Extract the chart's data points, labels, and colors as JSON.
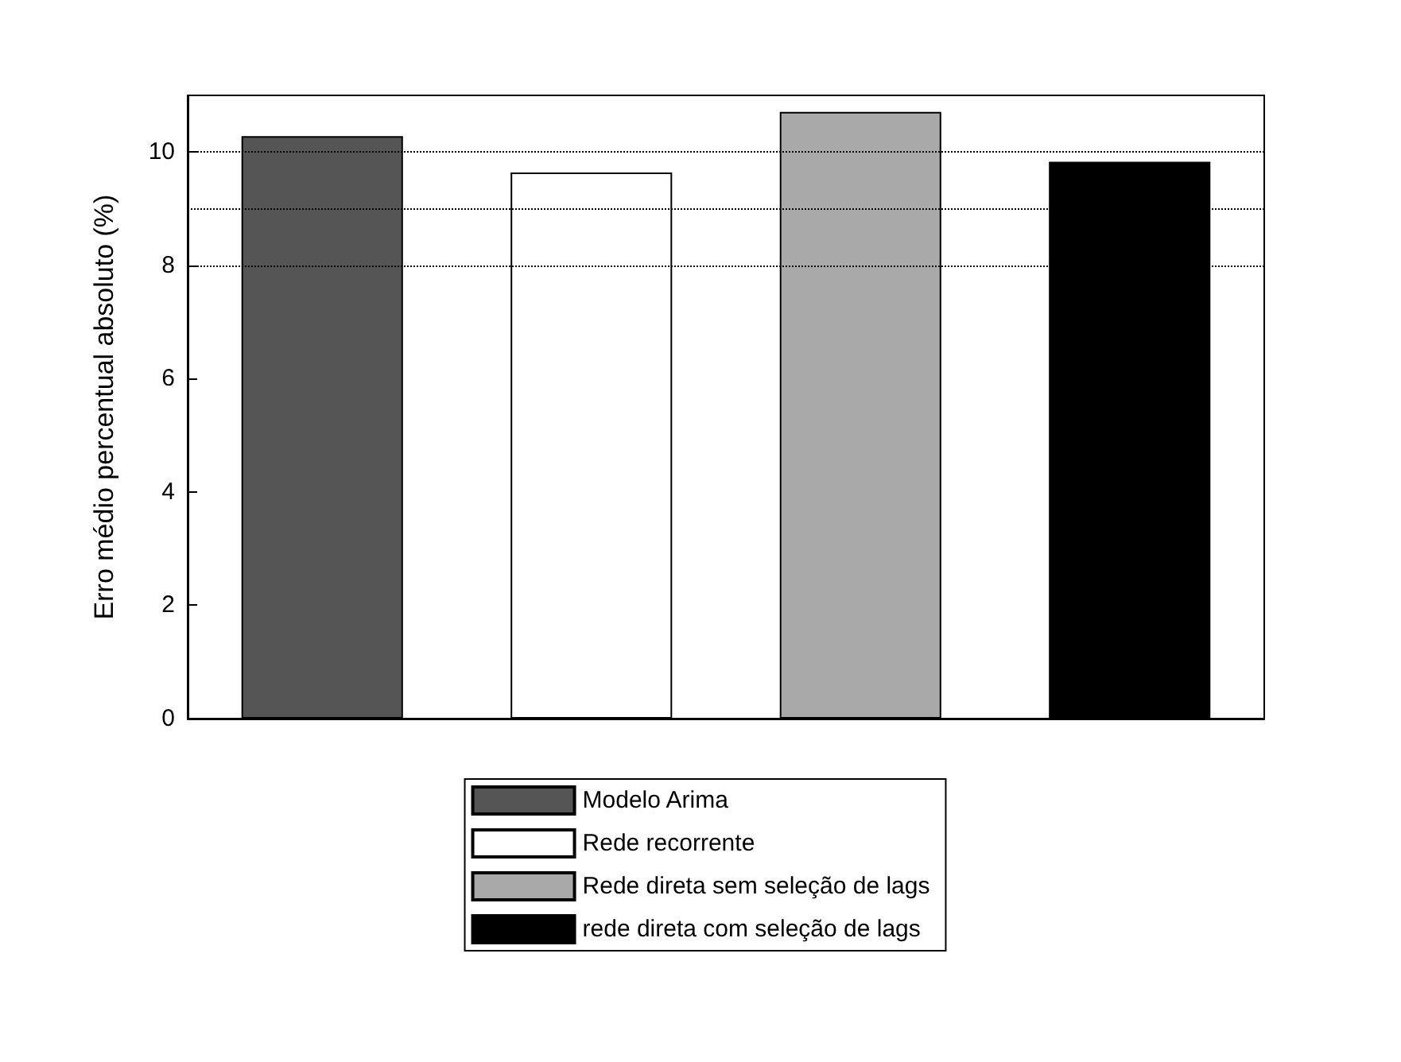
{
  "chart_data": {
    "type": "bar",
    "ylabel": "Erro médio percentual absoluto (%)",
    "categories": [
      null,
      null,
      null,
      null
    ],
    "series": [
      {
        "name": "Modelo Arima",
        "color": "#555555",
        "values": [
          10.28,
          null,
          null,
          null
        ]
      },
      {
        "name": "Rede recorrente",
        "color": "#ffffff",
        "values": [
          null,
          9.64,
          null,
          null
        ]
      },
      {
        "name": "Rede direta sem seleção de lags",
        "color": "#a9a9a9",
        "values": [
          null,
          null,
          10.71,
          null
        ]
      },
      {
        "name": "rede direta com seleção de lags",
        "color": "#000000",
        "values": [
          null,
          null,
          null,
          9.83
        ]
      }
    ],
    "ylim": [
      0,
      11
    ],
    "yticks": [
      0,
      2,
      4,
      6,
      8,
      10
    ],
    "ref_lines": [
      {
        "axis": "y",
        "value": 8,
        "line_style": "dotted",
        "color": "#000000"
      },
      {
        "axis": "y",
        "value": 9,
        "line_style": "dotted",
        "color": "#000000"
      },
      {
        "axis": "y",
        "value": 10,
        "line_style": "dotted",
        "color": "#000000"
      }
    ],
    "legend": "bottom",
    "grid": false
  }
}
